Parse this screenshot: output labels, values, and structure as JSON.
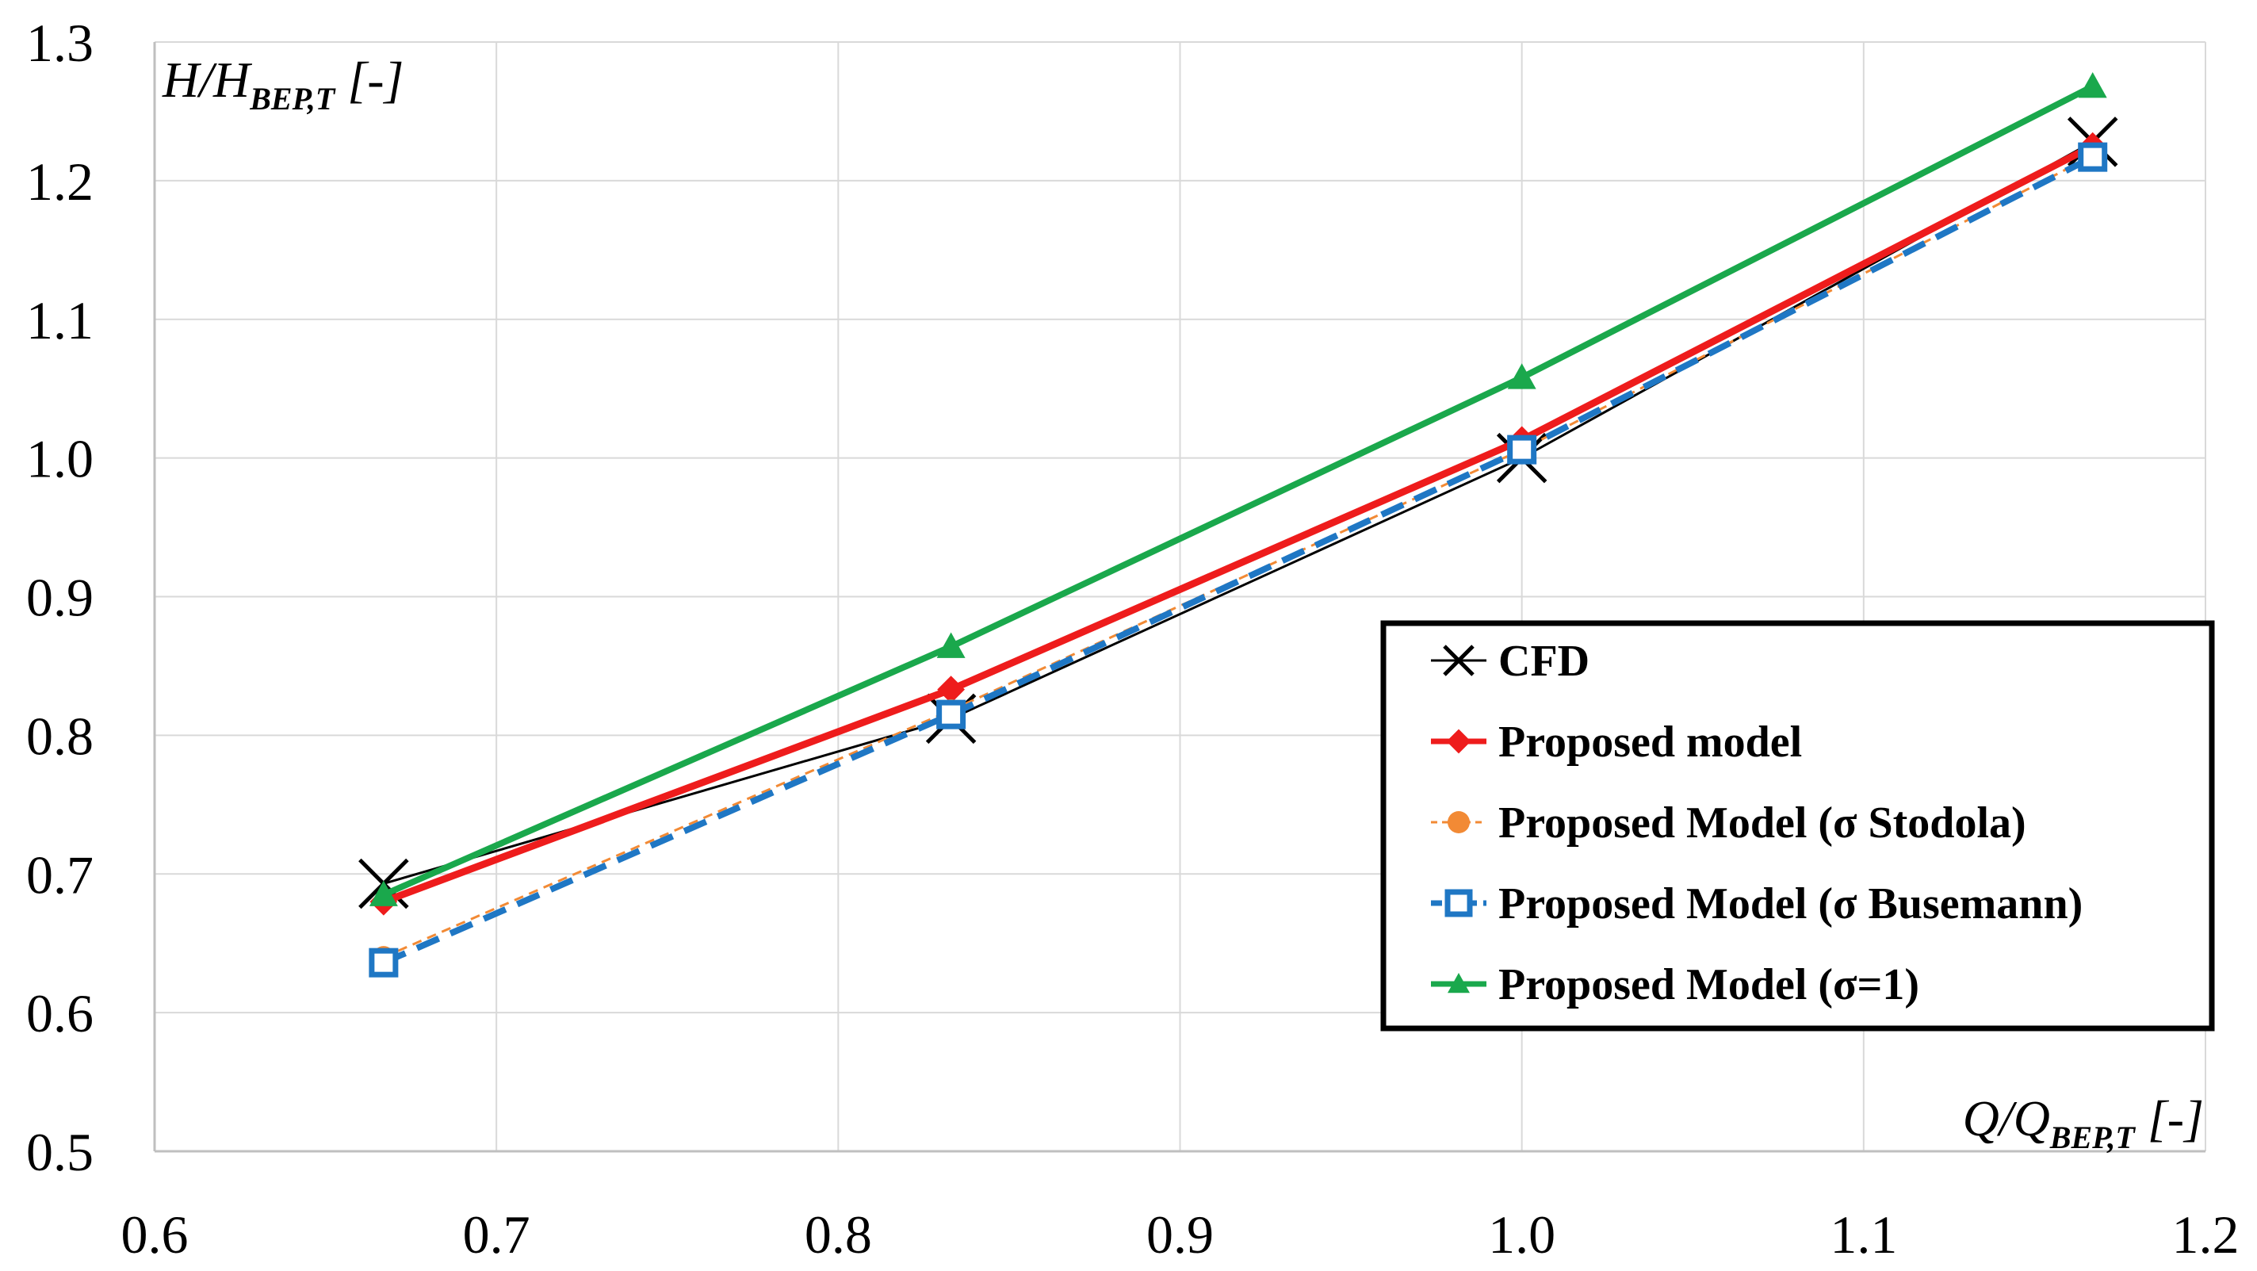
{
  "chart_data": {
    "type": "line",
    "title": "",
    "xlabel": {
      "main": "Q/Q",
      "sub": "BEP,T",
      "unit": " [-]"
    },
    "ylabel": {
      "main": "H/H",
      "sub": "BEP,T",
      "unit": " [-]"
    },
    "xlim": [
      0.6,
      1.2
    ],
    "ylim": [
      0.5,
      1.3
    ],
    "xticks": [
      "0.6",
      "0.7",
      "0.8",
      "0.9",
      "1.0",
      "1.1",
      "1.2"
    ],
    "yticks": [
      "0.5",
      "0.6",
      "0.7",
      "0.8",
      "0.9",
      "1.0",
      "1.1",
      "1.2",
      "1.3"
    ],
    "grid": true,
    "legend_position": "right-center",
    "series": [
      {
        "key": "cfd",
        "name": "CFD",
        "color": "#000000",
        "marker": "x",
        "line": "solid",
        "x": [
          0.667,
          0.833,
          1.0,
          1.167
        ],
        "y": [
          0.693,
          0.812,
          1.0,
          1.228
        ]
      },
      {
        "key": "proposed",
        "name": "Proposed model",
        "color": "#ee1c1c",
        "marker": "diamond",
        "line": "solid",
        "x": [
          0.667,
          0.833,
          1.0,
          1.167
        ],
        "y": [
          0.68,
          0.833,
          1.013,
          1.225
        ]
      },
      {
        "key": "stodola",
        "name": "Proposed Model (σ Stodola)",
        "color": "#f28a35",
        "marker": "circle",
        "line": "dashed-fine",
        "x": [
          0.667,
          0.833,
          1.0,
          1.167
        ],
        "y": [
          0.64,
          0.818,
          1.006,
          1.218
        ]
      },
      {
        "key": "busemann",
        "name": "Proposed Model (σ Busemann)",
        "color": "#1f77c4",
        "marker": "square",
        "line": "dashed",
        "x": [
          0.667,
          0.833,
          1.0,
          1.167
        ],
        "y": [
          0.636,
          0.815,
          1.006,
          1.217
        ]
      },
      {
        "key": "sigma1",
        "name": "Proposed Model (σ=1)",
        "color": "#1aa84c",
        "marker": "triangle",
        "line": "solid",
        "x": [
          0.667,
          0.833,
          1.0,
          1.167
        ],
        "y": [
          0.685,
          0.864,
          1.058,
          1.268
        ]
      }
    ]
  }
}
